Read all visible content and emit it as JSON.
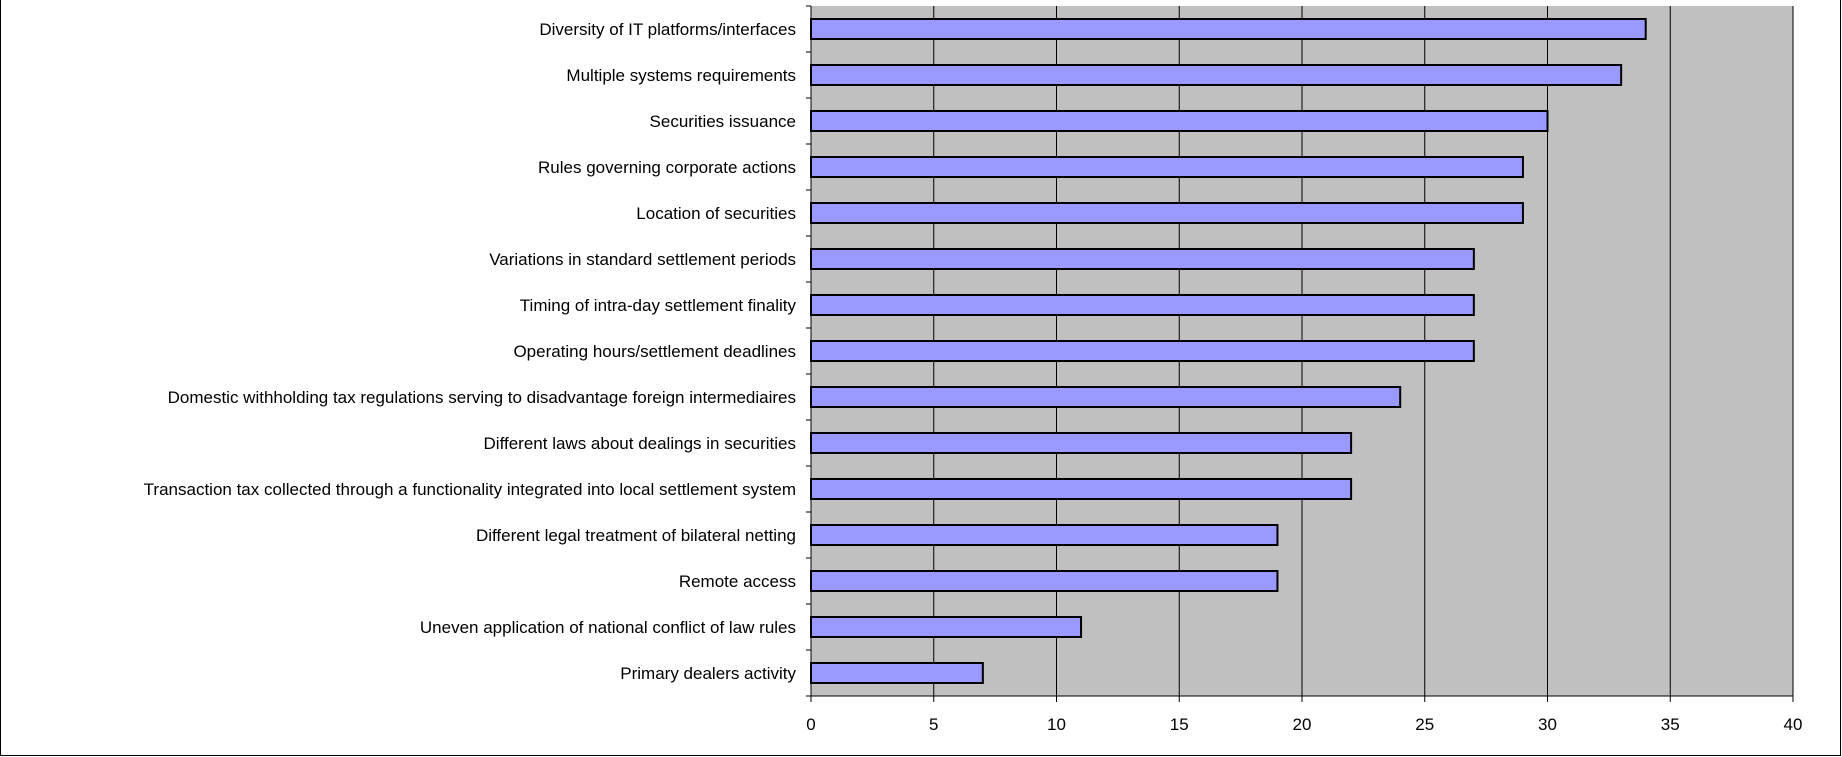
{
  "chart_data": {
    "type": "bar",
    "orientation": "horizontal",
    "categories": [
      "Diversity of IT platforms/interfaces",
      "Multiple systems requirements",
      "Securities issuance",
      "Rules governing corporate actions",
      "Location of securities",
      "Variations in standard settlement periods",
      "Timing of intra-day settlement finality",
      "Operating hours/settlement deadlines",
      "Domestic withholding tax regulations serving to disadvantage foreign intermediaires",
      "Different laws about dealings in securities",
      "Transaction tax collected through a functionality integrated into local settlement system",
      "Different legal treatment of bilateral netting",
      "Remote access",
      "Uneven application of national conflict of law rules",
      "Primary dealers activity"
    ],
    "values": [
      34,
      33,
      30,
      29,
      29,
      27,
      27,
      27,
      24,
      22,
      22,
      19,
      19,
      11,
      7
    ],
    "xlim": [
      0,
      40
    ],
    "xticks": [
      "0",
      "5",
      "10",
      "15",
      "20",
      "25",
      "30",
      "35",
      "40"
    ],
    "grid": "vertical",
    "legend": "none",
    "colors": {
      "bar_fill": "#9999ff",
      "bar_stroke": "#000000",
      "plot_bg": "#c0c0c0",
      "gridline": "#000000"
    }
  }
}
